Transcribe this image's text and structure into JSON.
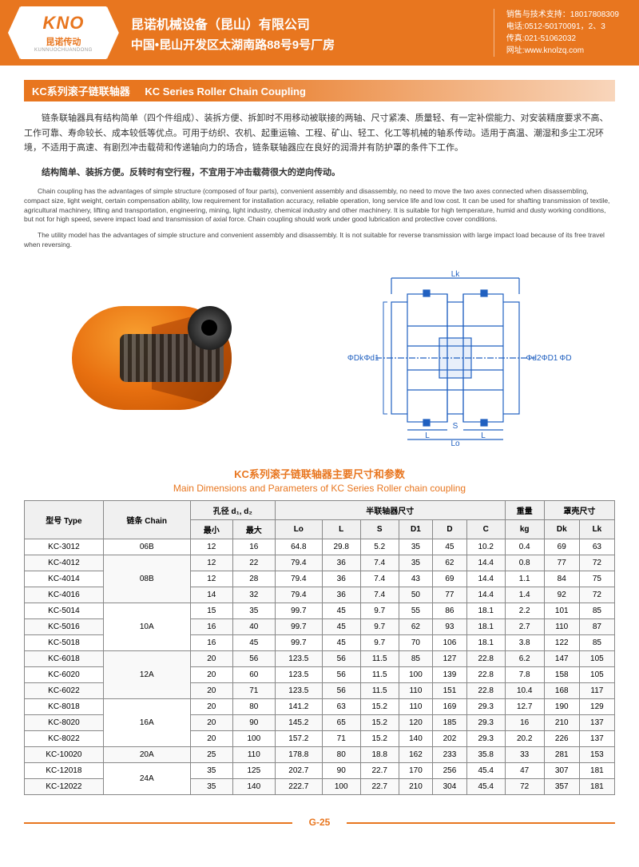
{
  "header": {
    "logo": "KNO",
    "logo_sub": "昆诺传动",
    "logo_sub_en": "KUNNUOCHUANDONG",
    "company_name": "昆诺机械设备（昆山）有限公司",
    "company_addr": "中国•昆山开发区太湖南路88号9号厂房",
    "contact1": "销售与技术支持：18017808309",
    "contact2": "电话:0512-50170091，2、3",
    "contact3": "传真:021-51062032",
    "contact4": "网址:www.knolzq.com"
  },
  "title": {
    "cn": "KC系列滚子链联轴器",
    "en": "KC Series Roller Chain Coupling"
  },
  "desc": {
    "cn1": "链条联轴器具有结构简单（四个件组成）、装拆方便、拆卸时不用移动被联接的两轴、尺寸紧凑、质量轻、有一定补偿能力、对安装精度要求不高、工作可靠、寿命较长、成本较低等优点。可用于纺织、农机、起重运输、工程、矿山、轻工、化工等机械的轴系传动。适用于高温、潮湿和多尘工况环境，不适用于高速、有剧烈冲击载荷和传递轴向力的场合，链条联轴器应在良好的润滑并有防护罩的条件下工作。",
    "cn2": "结构简单、装拆方便。反转时有空行程，不宜用于冲击载荷很大的逆向传动。",
    "en1": "Chain coupling has the advantages of simple structure (composed of four parts), convenient assembly and disassembly, no need to move the two axes connected when disassembling, compact size, light weight, certain compensation ability, low requirement for installation accuracy, reliable operation, long service life and low cost. It can be used for shafting transmission of textile, agricultural machinery, lifting and transportation, engineering, mining, light industry, chemical industry and other machinery. It is suitable for high temperature, humid and dusty working conditions, but not for high speed, severe impact load and transmission of axial force. Chain coupling should work under good lubrication and protective cover conditions.",
    "en2": "The utility model has the advantages of simple structure and convenient assembly and disassembly. It is not suitable for reverse transmission with large impact load because of its free travel when reversing."
  },
  "diagram_labels": {
    "Lk": "Lk",
    "Dk": "ΦDk",
    "d1": "Φd1",
    "d2": "Φd2",
    "D1": "ΦD1",
    "D": "ΦD",
    "S": "S",
    "L": "L",
    "Lo": "Lo"
  },
  "table_title": {
    "cn": "KC系列滚子链联轴器主要尺寸和参数",
    "en": "Main Dimensions and Parameters of KC Series Roller chain coupling"
  },
  "headers": {
    "type": "型号 Type",
    "chain": "链条 Chain",
    "bore": "孔径 d₁, d₂",
    "min": "最小",
    "max": "最大",
    "half": "半联轴器尺寸",
    "Lo": "Lo",
    "L": "L",
    "S": "S",
    "D1": "D1",
    "D": "D",
    "C": "C",
    "weight": "重量",
    "kg": "kg",
    "cover": "罩壳尺寸",
    "Dk": "Dk",
    "Lk": "Lk"
  },
  "chains": [
    "06B",
    "08B",
    "10A",
    "12A",
    "16A",
    "20A",
    "24A"
  ],
  "rows": [
    {
      "type": "KC-3012",
      "min": 12,
      "max": 16,
      "Lo": 64.8,
      "L": 29.8,
      "S": 5.2,
      "D1": 35,
      "D": 45,
      "C": 10.2,
      "kg": 0.4,
      "Dk": 69,
      "Lk": 63
    },
    {
      "type": "KC-4012",
      "min": 12,
      "max": 22,
      "Lo": 79.4,
      "L": 36,
      "S": 7.4,
      "D1": 35,
      "D": 62,
      "C": 14.4,
      "kg": 0.8,
      "Dk": 77,
      "Lk": 72
    },
    {
      "type": "KC-4014",
      "min": 12,
      "max": 28,
      "Lo": 79.4,
      "L": 36,
      "S": 7.4,
      "D1": 43,
      "D": 69,
      "C": 14.4,
      "kg": 1.1,
      "Dk": 84,
      "Lk": 75
    },
    {
      "type": "KC-4016",
      "min": 14,
      "max": 32,
      "Lo": 79.4,
      "L": 36,
      "S": 7.4,
      "D1": 50,
      "D": 77,
      "C": 14.4,
      "kg": 1.4,
      "Dk": 92,
      "Lk": 72
    },
    {
      "type": "KC-5014",
      "min": 15,
      "max": 35,
      "Lo": 99.7,
      "L": 45,
      "S": 9.7,
      "D1": 55,
      "D": 86,
      "C": 18.1,
      "kg": 2.2,
      "Dk": 101,
      "Lk": 85
    },
    {
      "type": "KC-5016",
      "min": 16,
      "max": 40,
      "Lo": 99.7,
      "L": 45,
      "S": 9.7,
      "D1": 62,
      "D": 93,
      "C": 18.1,
      "kg": 2.7,
      "Dk": 110,
      "Lk": 87
    },
    {
      "type": "KC-5018",
      "min": 16,
      "max": 45,
      "Lo": 99.7,
      "L": 45,
      "S": 9.7,
      "D1": 70,
      "D": 106,
      "C": 18.1,
      "kg": 3.8,
      "Dk": 122,
      "Lk": 85
    },
    {
      "type": "KC-6018",
      "min": 20,
      "max": 56,
      "Lo": 123.5,
      "L": 56,
      "S": 11.5,
      "D1": 85,
      "D": 127,
      "C": 22.8,
      "kg": 6.2,
      "Dk": 147,
      "Lk": 105
    },
    {
      "type": "KC-6020",
      "min": 20,
      "max": 60,
      "Lo": 123.5,
      "L": 56,
      "S": 11.5,
      "D1": 100,
      "D": 139,
      "C": 22.8,
      "kg": 7.8,
      "Dk": 158,
      "Lk": 105
    },
    {
      "type": "KC-6022",
      "min": 20,
      "max": 71,
      "Lo": 123.5,
      "L": 56,
      "S": 11.5,
      "D1": 110,
      "D": 151,
      "C": 22.8,
      "kg": 10.4,
      "Dk": 168,
      "Lk": 117
    },
    {
      "type": "KC-8018",
      "min": 20,
      "max": 80,
      "Lo": 141.2,
      "L": 63,
      "S": 15.2,
      "D1": 110,
      "D": 169,
      "C": 29.3,
      "kg": 12.7,
      "Dk": 190,
      "Lk": 129
    },
    {
      "type": "KC-8020",
      "min": 20,
      "max": 90,
      "Lo": 145.2,
      "L": 65,
      "S": 15.2,
      "D1": 120,
      "D": 185,
      "C": 29.3,
      "kg": 16,
      "Dk": 210,
      "Lk": 137
    },
    {
      "type": "KC-8022",
      "min": 20,
      "max": 100,
      "Lo": 157.2,
      "L": 71,
      "S": 15.2,
      "D1": 140,
      "D": 202,
      "C": 29.3,
      "kg": 20.2,
      "Dk": 226,
      "Lk": 137
    },
    {
      "type": "KC-10020",
      "min": 25,
      "max": 110,
      "Lo": 178.8,
      "L": 80,
      "S": 18.8,
      "D1": 162,
      "D": 233,
      "C": 35.8,
      "kg": 33,
      "Dk": 281,
      "Lk": 153
    },
    {
      "type": "KC-12018",
      "min": 35,
      "max": 125,
      "Lo": 202.7,
      "L": 90,
      "S": 22.7,
      "D1": 170,
      "D": 256,
      "C": 45.4,
      "kg": 47,
      "Dk": 307,
      "Lk": 181
    },
    {
      "type": "KC-12022",
      "min": 35,
      "max": 140,
      "Lo": 222.7,
      "L": 100,
      "S": 22.7,
      "D1": 210,
      "D": 304,
      "C": 45.4,
      "kg": 72,
      "Dk": 357,
      "Lk": 181
    }
  ],
  "page_num": "G-25",
  "colors": {
    "accent": "#e8761f",
    "diagram": "#2060c0"
  }
}
